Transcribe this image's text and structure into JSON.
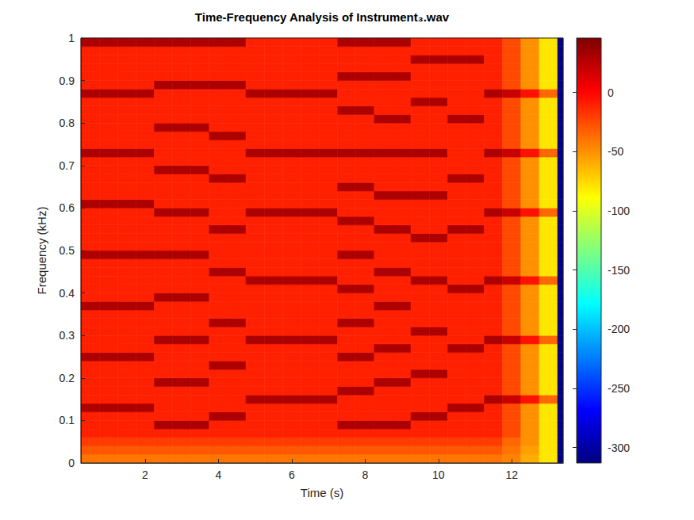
{
  "chart_data": {
    "type": "heatmap",
    "title": "Time-Frequency Analysis of Instrument₃.wav",
    "x_label": "Time (s)",
    "y_label": "Frequency (kHz)",
    "xlim": [
      0.25,
      13.4
    ],
    "xticks": [
      2,
      4,
      6,
      8,
      10,
      12
    ],
    "ylim": [
      0,
      1
    ],
    "yticks": [
      0,
      0.1,
      0.2,
      0.3,
      0.4,
      0.5,
      0.6,
      0.7,
      0.8,
      0.9,
      1
    ],
    "time_edges": [
      0.25,
      0.75,
      1.25,
      1.75,
      2.25,
      2.75,
      3.25,
      3.75,
      4.25,
      4.75,
      5.25,
      5.75,
      6.25,
      6.75,
      7.25,
      7.75,
      8.25,
      8.75,
      9.25,
      9.75,
      10.25,
      10.75,
      11.25,
      11.75,
      12.25,
      12.75,
      13.25,
      13.4
    ],
    "frequency_edges": [
      0,
      0.02,
      0.04,
      0.06,
      0.08,
      0.1,
      0.12,
      0.14,
      0.16,
      0.18,
      0.2,
      0.22,
      0.24,
      0.26,
      0.28,
      0.3,
      0.32,
      0.34,
      0.36,
      0.38,
      0.4,
      0.42,
      0.44,
      0.46,
      0.48,
      0.5,
      0.52,
      0.54,
      0.56,
      0.58,
      0.6,
      0.62,
      0.64,
      0.66,
      0.68,
      0.7,
      0.72,
      0.74,
      0.76,
      0.78,
      0.8,
      0.82,
      0.84,
      0.86,
      0.88,
      0.9,
      0.92,
      0.94,
      0.96,
      0.98,
      1
    ],
    "cells": [
      [
        -40,
        -30,
        -20,
        -10,
        -10,
        -10,
        30,
        -10,
        -10,
        -10,
        -10,
        -10,
        30,
        -10,
        -10,
        -10,
        -10,
        -10,
        30,
        -10,
        -10,
        -10,
        -10,
        -10,
        30,
        -10,
        -10,
        -10,
        -10,
        -10,
        30,
        -10,
        -10,
        -10,
        -10,
        -10,
        30,
        -10,
        -10,
        -10,
        -10,
        -10,
        -10,
        30,
        -10,
        -10,
        -10,
        -10,
        -10,
        30
      ],
      [
        -40,
        -30,
        -20,
        -10,
        -10,
        -10,
        30,
        -10,
        -10,
        -10,
        -10,
        -10,
        30,
        -10,
        -10,
        -10,
        -10,
        -10,
        30,
        -10,
        -10,
        -10,
        -10,
        -10,
        30,
        -10,
        -10,
        -10,
        -10,
        -10,
        30,
        -10,
        -10,
        -10,
        -10,
        -10,
        30,
        -10,
        -10,
        -10,
        -10,
        -10,
        -10,
        30,
        -10,
        -10,
        -10,
        -10,
        -10,
        30
      ],
      [
        -40,
        -30,
        -20,
        -10,
        -10,
        -10,
        30,
        -10,
        -10,
        -10,
        -10,
        -10,
        30,
        -10,
        -10,
        -10,
        -10,
        -10,
        30,
        -10,
        -10,
        -10,
        -10,
        -10,
        30,
        -10,
        -10,
        -10,
        -10,
        -10,
        30,
        -10,
        -10,
        -10,
        -10,
        -10,
        30,
        -10,
        -10,
        -10,
        -10,
        -10,
        -10,
        30,
        -10,
        -10,
        -10,
        -10,
        -10,
        30
      ],
      [
        -40,
        -30,
        -20,
        -10,
        -10,
        -10,
        30,
        -10,
        -10,
        -10,
        -10,
        -10,
        30,
        -10,
        -10,
        -10,
        -10,
        -10,
        30,
        -10,
        -10,
        -10,
        -10,
        -10,
        30,
        -10,
        -10,
        -10,
        -10,
        -10,
        30,
        -10,
        -10,
        -10,
        -10,
        -10,
        30,
        -10,
        -10,
        -10,
        -10,
        -10,
        -10,
        30,
        -10,
        -10,
        -10,
        -10,
        -10,
        30
      ],
      [
        -40,
        -30,
        -20,
        -10,
        30,
        -10,
        -10,
        -10,
        -10,
        30,
        -10,
        -10,
        -10,
        -10,
        30,
        -10,
        -10,
        -10,
        -10,
        30,
        -10,
        -10,
        -10,
        -10,
        30,
        -10,
        -10,
        -10,
        -10,
        30,
        -10,
        -10,
        -10,
        -10,
        30,
        -10,
        -10,
        -10,
        -10,
        30,
        -10,
        -10,
        -10,
        -10,
        30,
        -10,
        -10,
        -10,
        -10,
        30
      ],
      [
        -40,
        -30,
        -20,
        -10,
        30,
        -10,
        -10,
        -10,
        -10,
        30,
        -10,
        -10,
        -10,
        -10,
        30,
        -10,
        -10,
        -10,
        -10,
        30,
        -10,
        -10,
        -10,
        -10,
        30,
        -10,
        -10,
        -10,
        -10,
        30,
        -10,
        -10,
        -10,
        -10,
        30,
        -10,
        -10,
        -10,
        -10,
        30,
        -10,
        -10,
        -10,
        -10,
        30,
        -10,
        -10,
        -10,
        -10,
        30
      ],
      [
        -40,
        -30,
        -20,
        -10,
        30,
        -10,
        -10,
        -10,
        -10,
        30,
        -10,
        -10,
        -10,
        -10,
        30,
        -10,
        -10,
        -10,
        -10,
        30,
        -10,
        -10,
        -10,
        -10,
        30,
        -10,
        -10,
        -10,
        -10,
        30,
        -10,
        -10,
        -10,
        -10,
        30,
        -10,
        -10,
        -10,
        -10,
        30,
        -10,
        -10,
        -10,
        -10,
        30,
        -10,
        -10,
        -10,
        -10,
        30
      ],
      [
        -40,
        -30,
        -20,
        -10,
        -10,
        30,
        -10,
        -10,
        -10,
        -10,
        -10,
        30,
        -10,
        -10,
        -10,
        -10,
        30,
        -10,
        -10,
        -10,
        -10,
        -10,
        30,
        -10,
        -10,
        -10,
        -10,
        30,
        -10,
        -10,
        -10,
        -10,
        -10,
        30,
        -10,
        -10,
        -10,
        -10,
        30,
        -10,
        -10,
        -10,
        -10,
        -10,
        30,
        -10,
        -10,
        -10,
        -10,
        30
      ],
      [
        -40,
        -30,
        -20,
        -10,
        -10,
        30,
        -10,
        -10,
        -10,
        -10,
        -10,
        30,
        -10,
        -10,
        -10,
        -10,
        30,
        -10,
        -10,
        -10,
        -10,
        -10,
        30,
        -10,
        -10,
        -10,
        -10,
        30,
        -10,
        -10,
        -10,
        -10,
        -10,
        30,
        -10,
        -10,
        -10,
        -10,
        30,
        -10,
        -10,
        -10,
        -10,
        -10,
        30,
        -10,
        -10,
        -10,
        -10,
        30
      ],
      [
        -40,
        -30,
        -20,
        -10,
        -10,
        -10,
        -10,
        30,
        -10,
        -10,
        -10,
        -10,
        -10,
        -10,
        30,
        -10,
        -10,
        -10,
        -10,
        -10,
        -10,
        30,
        -10,
        -10,
        -10,
        -10,
        -10,
        -10,
        -10,
        30,
        -10,
        -10,
        -10,
        -10,
        -10,
        -10,
        30,
        -10,
        -10,
        -10,
        -10,
        -10,
        -10,
        30,
        -10,
        -10,
        -10,
        -10,
        -10,
        -10
      ],
      [
        -40,
        -30,
        -20,
        -10,
        -10,
        -10,
        -10,
        30,
        -10,
        -10,
        -10,
        -10,
        -10,
        -10,
        30,
        -10,
        -10,
        -10,
        -10,
        -10,
        -10,
        30,
        -10,
        -10,
        -10,
        -10,
        -10,
        -10,
        -10,
        30,
        -10,
        -10,
        -10,
        -10,
        -10,
        -10,
        30,
        -10,
        -10,
        -10,
        -10,
        -10,
        -10,
        30,
        -10,
        -10,
        -10,
        -10,
        -10,
        -10
      ],
      [
        -40,
        -30,
        -20,
        -10,
        -10,
        -10,
        -10,
        30,
        -10,
        -10,
        -10,
        -10,
        -10,
        -10,
        30,
        -10,
        -10,
        -10,
        -10,
        -10,
        -10,
        30,
        -10,
        -10,
        -10,
        -10,
        -10,
        -10,
        -10,
        30,
        -10,
        -10,
        -10,
        -10,
        -10,
        -10,
        30,
        -10,
        -10,
        -10,
        -10,
        -10,
        -10,
        30,
        -10,
        -10,
        -10,
        -10,
        -10,
        -10
      ],
      [
        -40,
        -30,
        -20,
        -10,
        -10,
        -10,
        -10,
        30,
        -10,
        -10,
        -10,
        -10,
        -10,
        -10,
        30,
        -10,
        -10,
        -10,
        -10,
        -10,
        -10,
        30,
        -10,
        -10,
        -10,
        -10,
        -10,
        -10,
        -10,
        30,
        -10,
        -10,
        -10,
        -10,
        -10,
        -10,
        30,
        -10,
        -10,
        -10,
        -10,
        -10,
        -10,
        30,
        -10,
        -10,
        -10,
        -10,
        -10,
        -10
      ],
      [
        -40,
        -30,
        -20,
        -10,
        -10,
        -10,
        -10,
        30,
        -10,
        -10,
        -10,
        -10,
        -10,
        -10,
        30,
        -10,
        -10,
        -10,
        -10,
        -10,
        -10,
        30,
        -10,
        -10,
        -10,
        -10,
        -10,
        -10,
        -10,
        30,
        -10,
        -10,
        -10,
        -10,
        -10,
        -10,
        30,
        -10,
        -10,
        -10,
        -10,
        -10,
        -10,
        30,
        -10,
        -10,
        -10,
        -10,
        -10,
        -10
      ],
      [
        -40,
        -30,
        -20,
        -10,
        30,
        -10,
        -10,
        -10,
        30,
        -10,
        -10,
        -10,
        30,
        -10,
        -10,
        -10,
        30,
        -10,
        -10,
        -10,
        30,
        -10,
        -10,
        -10,
        30,
        -10,
        -10,
        -10,
        30,
        -10,
        -10,
        -10,
        30,
        -10,
        -10,
        -10,
        30,
        -10,
        -10,
        -10,
        -10,
        30,
        -10,
        -10,
        -10,
        30,
        -10,
        -10,
        -10,
        30
      ],
      [
        -40,
        -30,
        -20,
        -10,
        30,
        -10,
        -10,
        -10,
        30,
        -10,
        -10,
        -10,
        30,
        -10,
        -10,
        -10,
        30,
        -10,
        -10,
        -10,
        30,
        -10,
        -10,
        -10,
        30,
        -10,
        -10,
        -10,
        30,
        -10,
        -10,
        -10,
        30,
        -10,
        -10,
        -10,
        30,
        -10,
        -10,
        -10,
        -10,
        30,
        -10,
        -10,
        -10,
        30,
        -10,
        -10,
        -10,
        30
      ],
      [
        -40,
        -30,
        -20,
        -10,
        30,
        -10,
        -10,
        -10,
        -10,
        30,
        -10,
        -10,
        -10,
        30,
        -10,
        -10,
        -10,
        -10,
        30,
        -10,
        -10,
        -10,
        30,
        -10,
        -10,
        -10,
        -10,
        30,
        -10,
        -10,
        -10,
        30,
        -10,
        -10,
        -10,
        -10,
        30,
        -10,
        -10,
        -10,
        30,
        -10,
        -10,
        -10,
        -10,
        30,
        -10,
        -10,
        -10,
        30
      ],
      [
        -40,
        -30,
        -20,
        -10,
        30,
        -10,
        -10,
        -10,
        -10,
        30,
        -10,
        -10,
        -10,
        30,
        -10,
        -10,
        -10,
        -10,
        30,
        -10,
        -10,
        -10,
        30,
        -10,
        -10,
        -10,
        -10,
        30,
        -10,
        -10,
        -10,
        30,
        -10,
        -10,
        -10,
        -10,
        30,
        -10,
        -10,
        -10,
        30,
        -10,
        -10,
        -10,
        -10,
        30,
        -10,
        -10,
        -10,
        30
      ],
      [
        -40,
        -30,
        -20,
        -10,
        -10,
        30,
        -10,
        -10,
        -10,
        -10,
        30,
        -10,
        -10,
        -10,
        -10,
        30,
        -10,
        -10,
        -10,
        -10,
        -10,
        30,
        -10,
        -10,
        -10,
        -10,
        30,
        -10,
        -10,
        -10,
        -10,
        30,
        -10,
        -10,
        -10,
        -10,
        30,
        -10,
        -10,
        -10,
        -10,
        -10,
        30,
        -10,
        -10,
        -10,
        -10,
        30,
        -10,
        -10
      ],
      [
        -40,
        -30,
        -20,
        -10,
        -10,
        30,
        -10,
        -10,
        -10,
        -10,
        30,
        -10,
        -10,
        -10,
        -10,
        30,
        -10,
        -10,
        -10,
        -10,
        -10,
        30,
        -10,
        -10,
        -10,
        -10,
        30,
        -10,
        -10,
        -10,
        -10,
        30,
        -10,
        -10,
        -10,
        -10,
        30,
        -10,
        -10,
        -10,
        -10,
        -10,
        30,
        -10,
        -10,
        -10,
        -10,
        30,
        -10,
        -10
      ],
      [
        -40,
        -30,
        -20,
        -10,
        -10,
        -10,
        30,
        -10,
        -10,
        -10,
        -10,
        -10,
        -10,
        30,
        -10,
        -10,
        -10,
        -10,
        -10,
        -10,
        30,
        -10,
        -10,
        -10,
        -10,
        -10,
        -10,
        30,
        -10,
        -10,
        -10,
        -10,
        -10,
        30,
        -10,
        -10,
        -10,
        -10,
        -10,
        -10,
        30,
        -10,
        -10,
        -10,
        -10,
        -10,
        -10,
        30,
        -10,
        -10
      ],
      [
        -40,
        -30,
        -20,
        -10,
        -10,
        -10,
        30,
        -10,
        -10,
        -10,
        -10,
        -10,
        -10,
        30,
        -10,
        -10,
        -10,
        -10,
        -10,
        -10,
        30,
        -10,
        -10,
        -10,
        -10,
        -10,
        -10,
        30,
        -10,
        -10,
        -10,
        -10,
        -10,
        30,
        -10,
        -10,
        -10,
        -10,
        -10,
        -10,
        30,
        -10,
        -10,
        -10,
        -10,
        -10,
        -10,
        30,
        -10,
        -10
      ],
      [
        -40,
        -30,
        -20,
        -10,
        -10,
        -10,
        -10,
        30,
        -10,
        -10,
        -10,
        -10,
        -10,
        -10,
        30,
        -10,
        -10,
        -10,
        -10,
        -10,
        -10,
        30,
        -10,
        -10,
        -10,
        -10,
        -10,
        -10,
        -10,
        30,
        -10,
        -10,
        -10,
        -10,
        -10,
        -10,
        30,
        -10,
        -10,
        -10,
        -10,
        -10,
        -10,
        30,
        -10,
        -10,
        -10,
        -10,
        -10,
        -10
      ],
      [
        -45,
        -40,
        -35,
        -25,
        -25,
        -25,
        -25,
        20,
        -25,
        -25,
        -25,
        -25,
        -25,
        -25,
        20,
        -25,
        -25,
        -25,
        -25,
        -25,
        -25,
        20,
        -25,
        -25,
        -25,
        -25,
        -25,
        -25,
        -25,
        20,
        -25,
        -25,
        -25,
        -25,
        -25,
        -25,
        20,
        -25,
        -25,
        -25,
        -25,
        -25,
        -25,
        20,
        -25,
        -25,
        -25,
        -25,
        -25,
        -25
      ],
      [
        -60,
        -55,
        -50,
        -50,
        -50,
        -50,
        -50,
        -5,
        -50,
        -50,
        -50,
        -50,
        -50,
        -50,
        -5,
        -50,
        -50,
        -50,
        -50,
        -50,
        -50,
        -5,
        -50,
        -50,
        -50,
        -50,
        -50,
        -50,
        -50,
        -5,
        -50,
        -50,
        -50,
        -50,
        -50,
        -50,
        -5,
        -50,
        -50,
        -50,
        -50,
        -50,
        -50,
        -5,
        -50,
        -50,
        -50,
        -50,
        -50,
        -50
      ],
      [
        -80,
        -80,
        -80,
        -80,
        -80,
        -80,
        -80,
        -35,
        -80,
        -80,
        -80,
        -80,
        -80,
        -80,
        -35,
        -80,
        -80,
        -80,
        -80,
        -80,
        -80,
        -35,
        -80,
        -80,
        -80,
        -80,
        -80,
        -80,
        -80,
        -35,
        -80,
        -80,
        -80,
        -80,
        -80,
        -80,
        -35,
        -80,
        -80,
        -80,
        -80,
        -80,
        -80,
        -35,
        -80,
        -80,
        -80,
        -80,
        -80,
        -80
      ],
      [
        -310,
        -310,
        -310,
        -310,
        -310,
        -310,
        -310,
        -310,
        -310,
        -310,
        -310,
        -310,
        -310,
        -310,
        -310,
        -310,
        -310,
        -310,
        -310,
        -310,
        -310,
        -310,
        -310,
        -310,
        -310,
        -310,
        -310,
        -310,
        -310,
        -310,
        -310,
        -310,
        -310,
        -310,
        -310,
        -310,
        -310,
        -310,
        -310,
        -310,
        -310,
        -310,
        -310,
        -310,
        -310,
        -310,
        -310,
        -310,
        -310,
        -310
      ]
    ],
    "colorbar": {
      "lim": [
        -313,
        46
      ],
      "ticks": [
        -300,
        -250,
        -200,
        -150,
        -100,
        -50,
        0
      ]
    }
  }
}
